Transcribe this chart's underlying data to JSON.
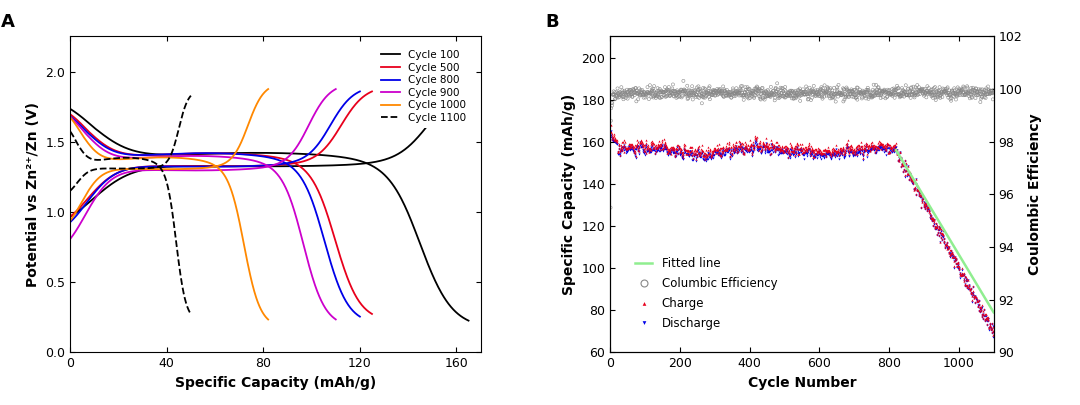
{
  "panel_A": {
    "xlabel": "Specific Capacity (mAh/g)",
    "ylabel": "Potential vs Zn²⁺/Zn (V)",
    "xlim": [
      0,
      170
    ],
    "ylim": [
      0.0,
      2.25
    ],
    "xticks": [
      0,
      40,
      80,
      120,
      160
    ],
    "yticks": [
      0.0,
      0.5,
      1.0,
      1.5,
      2.0
    ],
    "label_A": "A",
    "cycles": [
      {
        "label": "Cycle 100",
        "color": "#000000",
        "ls": "-",
        "cap": 165,
        "d_start": 1.85,
        "d_plateau": 1.35,
        "d_end": 0.17,
        "c_start": 0.85,
        "c_plateau": 1.35,
        "c_end": 1.9
      },
      {
        "label": "Cycle 500",
        "color": "#e8001c",
        "ls": "-",
        "cap": 125,
        "d_start": 1.8,
        "d_plateau": 1.35,
        "d_end": 0.22,
        "c_start": 0.85,
        "c_plateau": 1.35,
        "c_end": 1.9
      },
      {
        "label": "Cycle 800",
        "color": "#0000e8",
        "ls": "-",
        "cap": 120,
        "d_start": 1.78,
        "d_plateau": 1.35,
        "d_end": 0.2,
        "c_start": 0.8,
        "c_plateau": 1.35,
        "c_end": 1.9
      },
      {
        "label": "Cycle 900",
        "color": "#cc00cc",
        "ls": "-",
        "cap": 110,
        "d_start": 1.78,
        "d_plateau": 1.33,
        "d_end": 0.18,
        "c_start": 0.65,
        "c_plateau": 1.33,
        "c_end": 1.92
      },
      {
        "label": "Cycle 1000",
        "color": "#ff8800",
        "ls": "-",
        "cap": 82,
        "d_start": 1.78,
        "d_plateau": 1.32,
        "d_end": 0.18,
        "c_start": 0.82,
        "c_plateau": 1.33,
        "c_end": 1.92
      },
      {
        "label": "Cycle 1100",
        "color": "#000000",
        "ls": "--",
        "cap": 50,
        "d_start": 1.65,
        "d_plateau": 1.32,
        "d_end": 0.22,
        "c_start": 1.1,
        "c_plateau": 1.32,
        "c_end": 1.87
      }
    ]
  },
  "panel_B": {
    "xlabel": "Cycle Number",
    "ylabel_left": "Specific Capacity (mAh/g)",
    "ylabel_right": "Coulombic Efficiency",
    "label_B": "B",
    "xlim": [
      0,
      1100
    ],
    "ylim_left": [
      60,
      210
    ],
    "ylim_right": [
      90,
      102
    ],
    "xticks": [
      0,
      200,
      400,
      600,
      800,
      1000
    ],
    "yticks_left": [
      60,
      80,
      100,
      120,
      140,
      160,
      180,
      200
    ],
    "yticks_right": [
      90,
      92,
      94,
      96,
      98,
      100,
      102
    ],
    "fit_x": [
      820,
      1100
    ],
    "fit_y": [
      156,
      79
    ],
    "fit_color": "#90ee90",
    "ce_color": "#888888",
    "charge_color": "#e8001c",
    "discharge_color": "#0000e8",
    "legend_labels": [
      "Fitted line",
      "Columbic Efficiency",
      "Charge",
      "Discharge"
    ]
  }
}
